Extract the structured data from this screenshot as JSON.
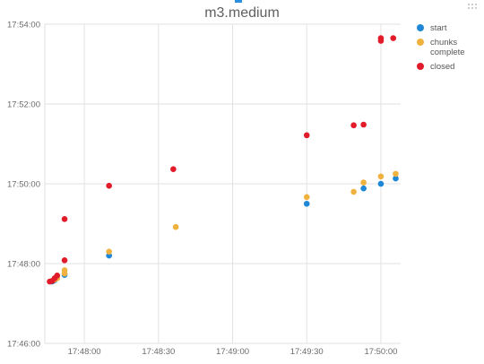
{
  "page": {
    "colors": {
      "accent": "#2a8fe0",
      "more_icon": "#bdbdbd"
    }
  },
  "chart_data": {
    "type": "scatter",
    "title": "m3.medium",
    "x_type": "time",
    "y_type": "time",
    "xlim": [
      "17:47:44",
      "17:50:08"
    ],
    "ylim": [
      "17:46:00",
      "17:54:00"
    ],
    "x_ticks": [
      "17:48:00",
      "17:48:30",
      "17:49:00",
      "17:49:30",
      "17:50:00"
    ],
    "y_ticks": [
      "17:46:00",
      "17:48:00",
      "17:50:00",
      "17:52:00",
      "17:54:00"
    ],
    "grid": true,
    "legend_position": "right",
    "series": [
      {
        "name": "start",
        "color": "#1f88d6",
        "points": [
          {
            "x": "17:47:47",
            "y": "17:47:33"
          },
          {
            "x": "17:47:48",
            "y": "17:47:35"
          },
          {
            "x": "17:47:52",
            "y": "17:47:43"
          },
          {
            "x": "17:48:10",
            "y": "17:48:12"
          },
          {
            "x": "17:49:30",
            "y": "17:49:30"
          },
          {
            "x": "17:49:53",
            "y": "17:49:53"
          },
          {
            "x": "17:50:00",
            "y": "17:50:00"
          },
          {
            "x": "17:50:06",
            "y": "17:50:08"
          }
        ]
      },
      {
        "name": "chunks\ncomplete",
        "color": "#f0b23e",
        "points": [
          {
            "x": "17:47:47",
            "y": "17:47:34"
          },
          {
            "x": "17:47:48",
            "y": "17:47:36"
          },
          {
            "x": "17:47:49",
            "y": "17:47:38"
          },
          {
            "x": "17:47:52",
            "y": "17:47:50"
          },
          {
            "x": "17:47:52",
            "y": "17:47:45"
          },
          {
            "x": "17:48:10",
            "y": "17:48:18"
          },
          {
            "x": "17:48:37",
            "y": "17:48:55"
          },
          {
            "x": "17:49:30",
            "y": "17:49:40"
          },
          {
            "x": "17:49:49",
            "y": "17:49:48"
          },
          {
            "x": "17:49:53",
            "y": "17:50:02"
          },
          {
            "x": "17:50:00",
            "y": "17:50:11"
          },
          {
            "x": "17:50:06",
            "y": "17:50:15"
          }
        ]
      },
      {
        "name": "closed",
        "color": "#e21b2a",
        "points": [
          {
            "x": "17:47:46",
            "y": "17:47:33"
          },
          {
            "x": "17:47:47",
            "y": "17:47:34"
          },
          {
            "x": "17:47:48",
            "y": "17:47:38"
          },
          {
            "x": "17:47:49",
            "y": "17:47:42"
          },
          {
            "x": "17:47:52",
            "y": "17:48:05"
          },
          {
            "x": "17:47:52",
            "y": "17:49:07"
          },
          {
            "x": "17:48:10",
            "y": "17:49:57"
          },
          {
            "x": "17:48:36",
            "y": "17:50:22"
          },
          {
            "x": "17:49:30",
            "y": "17:51:13"
          },
          {
            "x": "17:49:49",
            "y": "17:51:28"
          },
          {
            "x": "17:49:53",
            "y": "17:51:29"
          },
          {
            "x": "17:50:00",
            "y": "17:53:35"
          },
          {
            "x": "17:50:00",
            "y": "17:53:39"
          },
          {
            "x": "17:50:05",
            "y": "17:53:39"
          }
        ]
      }
    ]
  }
}
